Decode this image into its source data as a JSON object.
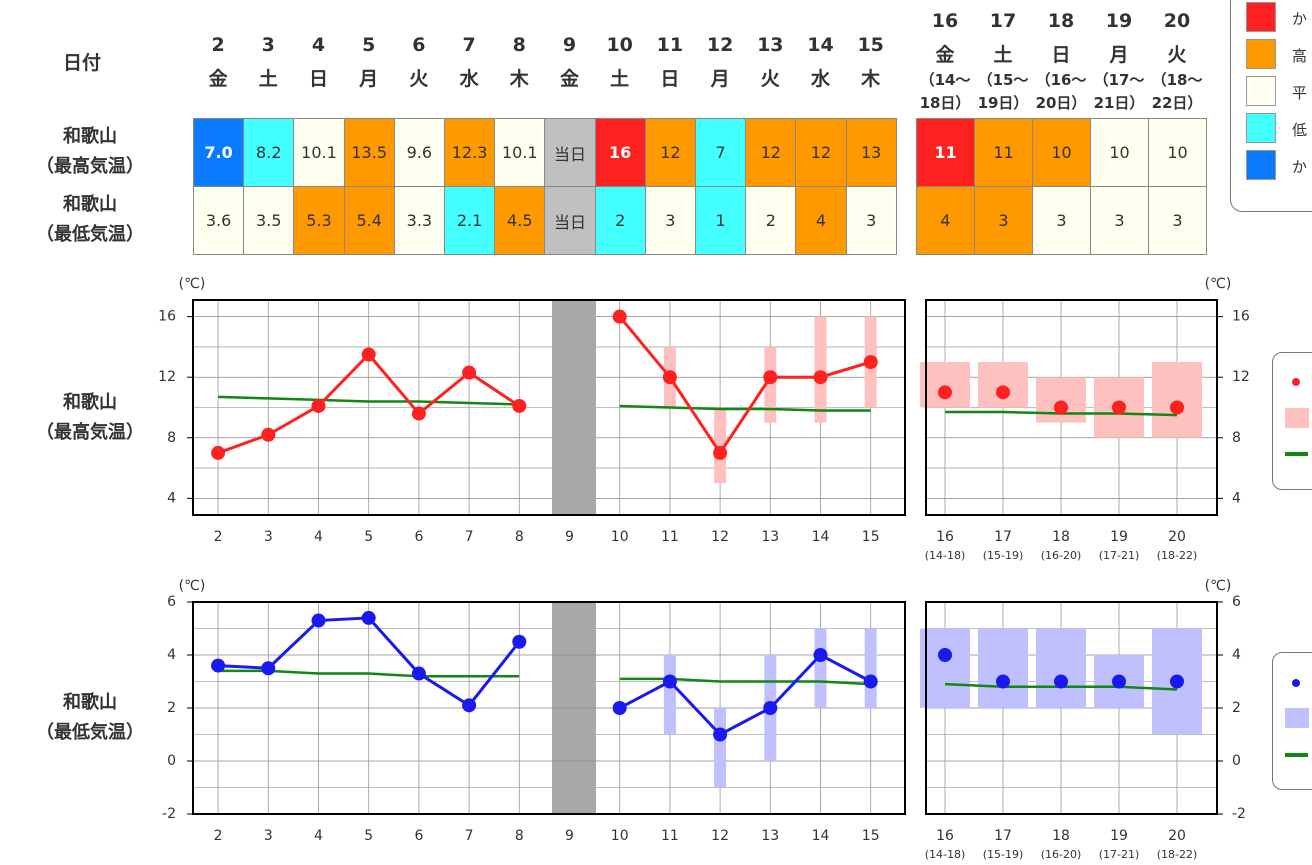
{
  "header": {
    "date_label": "日付"
  },
  "days": [
    {
      "day": "2",
      "weekday": "金"
    },
    {
      "day": "3",
      "weekday": "土"
    },
    {
      "day": "4",
      "weekday": "日"
    },
    {
      "day": "5",
      "weekday": "月"
    },
    {
      "day": "6",
      "weekday": "火"
    },
    {
      "day": "7",
      "weekday": "水"
    },
    {
      "day": "8",
      "weekday": "木"
    },
    {
      "day": "9",
      "weekday": "金"
    },
    {
      "day": "10",
      "weekday": "土"
    },
    {
      "day": "11",
      "weekday": "日"
    },
    {
      "day": "12",
      "weekday": "月"
    },
    {
      "day": "13",
      "weekday": "火"
    },
    {
      "day": "14",
      "weekday": "水"
    },
    {
      "day": "15",
      "weekday": "木"
    },
    {
      "day": "16",
      "weekday": "金",
      "range": "（14〜18日）"
    },
    {
      "day": "17",
      "weekday": "土",
      "range": "（15〜19日）"
    },
    {
      "day": "18",
      "weekday": "日",
      "range": "（16〜20日）"
    },
    {
      "day": "19",
      "weekday": "月",
      "range": "（17〜21日）"
    },
    {
      "day": "20",
      "weekday": "火",
      "range": "（18〜22日）"
    }
  ],
  "legend": [
    {
      "color": "#ff2020",
      "text": "か"
    },
    {
      "color": "#ff9900",
      "text": "高"
    },
    {
      "color": "#fffff0",
      "text": "平"
    },
    {
      "color": "#44ffff",
      "text": "低"
    },
    {
      "color": "#0a7bff",
      "text": "か"
    }
  ],
  "table": {
    "rows": [
      {
        "name": "和歌山",
        "label": "（最高気温）",
        "cells": [
          {
            "text": "7.0",
            "color": "#0a7bff",
            "emphasis": true
          },
          {
            "text": "8.2",
            "color": "#44ffff"
          },
          {
            "text": "10.1",
            "color": "#fffff0"
          },
          {
            "text": "13.5",
            "color": "#ff9900"
          },
          {
            "text": "9.6",
            "color": "#fffff0"
          },
          {
            "text": "12.3",
            "color": "#ff9900"
          },
          {
            "text": "10.1",
            "color": "#fffff0"
          },
          {
            "text": "当日",
            "color": "#c0c0c0"
          },
          {
            "text": "16",
            "color": "#ff2020",
            "emphasis": true
          },
          {
            "text": "12",
            "color": "#ff9900"
          },
          {
            "text": "7",
            "color": "#44ffff"
          },
          {
            "text": "12",
            "color": "#ff9900"
          },
          {
            "text": "12",
            "color": "#ff9900"
          },
          {
            "text": "13",
            "color": "#ff9900"
          },
          {
            "text": "11",
            "color": "#ff2020",
            "emphasis": true
          },
          {
            "text": "11",
            "color": "#ff9900"
          },
          {
            "text": "10",
            "color": "#ff9900"
          },
          {
            "text": "10",
            "color": "#fffff0"
          },
          {
            "text": "10",
            "color": "#fffff0"
          }
        ]
      },
      {
        "name": "和歌山",
        "label": "（最低気温）",
        "cells": [
          {
            "text": "3.6",
            "color": "#fffff0"
          },
          {
            "text": "3.5",
            "color": "#fffff0"
          },
          {
            "text": "5.3",
            "color": "#ff9900"
          },
          {
            "text": "5.4",
            "color": "#ff9900"
          },
          {
            "text": "3.3",
            "color": "#fffff0"
          },
          {
            "text": "2.1",
            "color": "#44ffff"
          },
          {
            "text": "4.5",
            "color": "#ff9900"
          },
          {
            "text": "当日",
            "color": "#c0c0c0"
          },
          {
            "text": "2",
            "color": "#44ffff"
          },
          {
            "text": "3",
            "color": "#fffff0"
          },
          {
            "text": "1",
            "color": "#44ffff"
          },
          {
            "text": "2",
            "color": "#fffff0"
          },
          {
            "text": "4",
            "color": "#ff9900"
          },
          {
            "text": "3",
            "color": "#fffff0"
          },
          {
            "text": "4",
            "color": "#ff9900"
          },
          {
            "text": "3",
            "color": "#ff9900"
          },
          {
            "text": "3",
            "color": "#fffff0"
          },
          {
            "text": "3",
            "color": "#fffff0"
          },
          {
            "text": "3",
            "color": "#fffff0"
          }
        ]
      }
    ]
  },
  "chart_data": [
    {
      "type": "line",
      "y_unit": "(℃)",
      "ylim": [
        2.9,
        17.1
      ],
      "yticks": [
        4,
        8,
        12,
        16
      ],
      "yminor": [
        6,
        10,
        14
      ],
      "grid": true,
      "categories": [
        "2",
        "3",
        "4",
        "5",
        "6",
        "7",
        "8",
        "9",
        "10",
        "11",
        "12",
        "13",
        "14",
        "15",
        "16",
        "17",
        "18",
        "19",
        "20"
      ],
      "sublabels": [
        null,
        null,
        null,
        null,
        null,
        null,
        null,
        null,
        null,
        null,
        null,
        null,
        null,
        null,
        "(14-18)",
        "(15-19)",
        "(16-20)",
        "(17-21)",
        "(18-22)"
      ],
      "ranges": {
        "color": "#ffc0c0",
        "low": [
          null,
          null,
          null,
          null,
          null,
          null,
          null,
          null,
          null,
          10,
          5,
          9,
          9,
          10,
          10,
          10,
          9,
          8,
          8
        ],
        "high": [
          null,
          null,
          null,
          null,
          null,
          null,
          null,
          null,
          null,
          14,
          10,
          14,
          16,
          16,
          13,
          13,
          12,
          12,
          13
        ]
      },
      "series": [
        {
          "color": "#118811",
          "line": true,
          "values": [
            10.7,
            10.6,
            10.5,
            10.4,
            10.4,
            10.3,
            10.2,
            null,
            10.1,
            10.0,
            9.9,
            9.9,
            9.8,
            9.8,
            null,
            null,
            null,
            null,
            null
          ]
        },
        {
          "color": "#118811",
          "line": true,
          "values": [
            null,
            null,
            null,
            null,
            null,
            null,
            null,
            null,
            null,
            null,
            null,
            null,
            null,
            null,
            9.7,
            9.7,
            9.6,
            9.6,
            9.5
          ]
        },
        {
          "color": "#ff2020",
          "line": true,
          "marker": true,
          "values": [
            7.0,
            8.2,
            10.1,
            13.5,
            9.6,
            12.3,
            10.1,
            null,
            16,
            12,
            7,
            12,
            12,
            13,
            null,
            null,
            null,
            null,
            null
          ]
        },
        {
          "color": "#ff2020",
          "line": false,
          "marker": true,
          "values": [
            null,
            null,
            null,
            null,
            null,
            null,
            null,
            null,
            null,
            null,
            null,
            null,
            null,
            null,
            11,
            11,
            10,
            10,
            10
          ]
        }
      ]
    },
    {
      "type": "line",
      "y_unit": "(℃)",
      "ylim": [
        -2,
        6
      ],
      "yticks": [
        -2,
        0,
        2,
        4,
        6
      ],
      "yminor": [
        -1,
        1,
        3,
        5
      ],
      "grid": true,
      "categories": [
        "2",
        "3",
        "4",
        "5",
        "6",
        "7",
        "8",
        "9",
        "10",
        "11",
        "12",
        "13",
        "14",
        "15",
        "16",
        "17",
        "18",
        "19",
        "20"
      ],
      "sublabels": [
        null,
        null,
        null,
        null,
        null,
        null,
        null,
        null,
        null,
        null,
        null,
        null,
        null,
        null,
        "(14-18)",
        "(15-19)",
        "(16-20)",
        "(17-21)",
        "(18-22)"
      ],
      "ranges": {
        "color": "#c0c0ff",
        "low": [
          null,
          null,
          null,
          null,
          null,
          null,
          null,
          null,
          null,
          1,
          -1,
          0,
          2,
          2,
          2,
          2,
          2,
          2,
          1
        ],
        "high": [
          null,
          null,
          null,
          null,
          null,
          null,
          null,
          null,
          null,
          4,
          2,
          4,
          5,
          5,
          5,
          5,
          5,
          4,
          5
        ]
      },
      "series": [
        {
          "color": "#118811",
          "line": true,
          "values": [
            3.4,
            3.4,
            3.3,
            3.3,
            3.2,
            3.2,
            3.2,
            null,
            3.1,
            3.1,
            3.0,
            3.0,
            3.0,
            2.9,
            null,
            null,
            null,
            null,
            null
          ]
        },
        {
          "color": "#118811",
          "line": true,
          "values": [
            null,
            null,
            null,
            null,
            null,
            null,
            null,
            null,
            null,
            null,
            null,
            null,
            null,
            null,
            2.9,
            2.8,
            2.8,
            2.8,
            2.7
          ]
        },
        {
          "color": "#1a1aee",
          "line": true,
          "marker": true,
          "values": [
            3.6,
            3.5,
            5.3,
            5.4,
            3.3,
            2.1,
            4.5,
            null,
            2,
            3,
            1,
            2,
            4,
            3,
            null,
            null,
            null,
            null,
            null
          ]
        },
        {
          "color": "#1a1aee",
          "line": false,
          "marker": true,
          "values": [
            null,
            null,
            null,
            null,
            null,
            null,
            null,
            null,
            null,
            null,
            null,
            null,
            null,
            null,
            4,
            3,
            3,
            3,
            3
          ]
        }
      ]
    }
  ]
}
